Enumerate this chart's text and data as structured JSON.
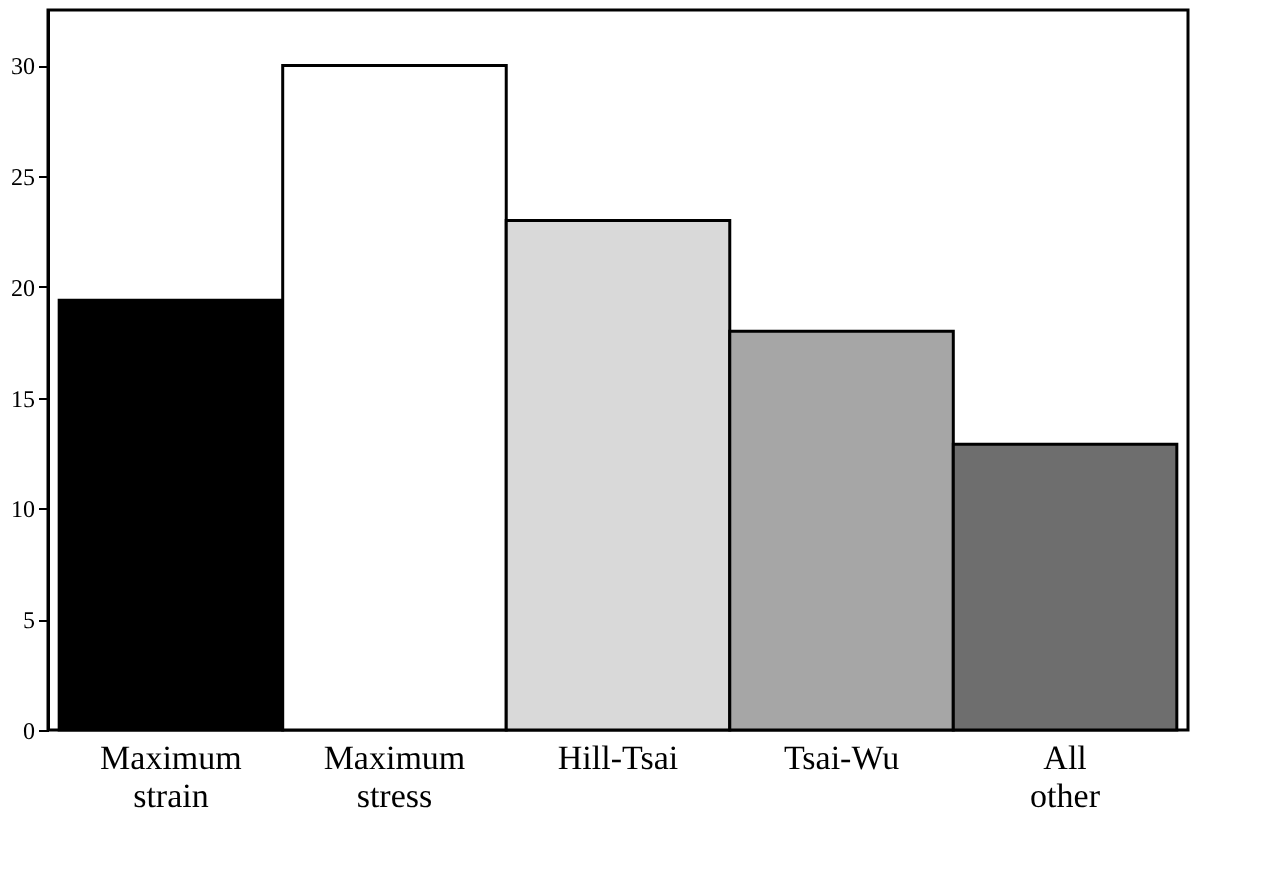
{
  "chart_data": {
    "type": "bar",
    "categories": [
      "Maximum strain",
      "Maximum stress",
      "Hill-Tsai",
      "Tsai-Wu",
      "All other"
    ],
    "values": [
      19.4,
      30,
      23,
      18,
      12.9
    ],
    "colors": [
      "#000000",
      "#ffffff",
      "#d9d9d9",
      "#a6a6a6",
      "#6e6e6e"
    ],
    "ylim": [
      0,
      32.5
    ],
    "yticks": [
      0,
      5,
      10,
      15,
      20,
      25,
      30
    ],
    "grid": false,
    "legend": false
  }
}
